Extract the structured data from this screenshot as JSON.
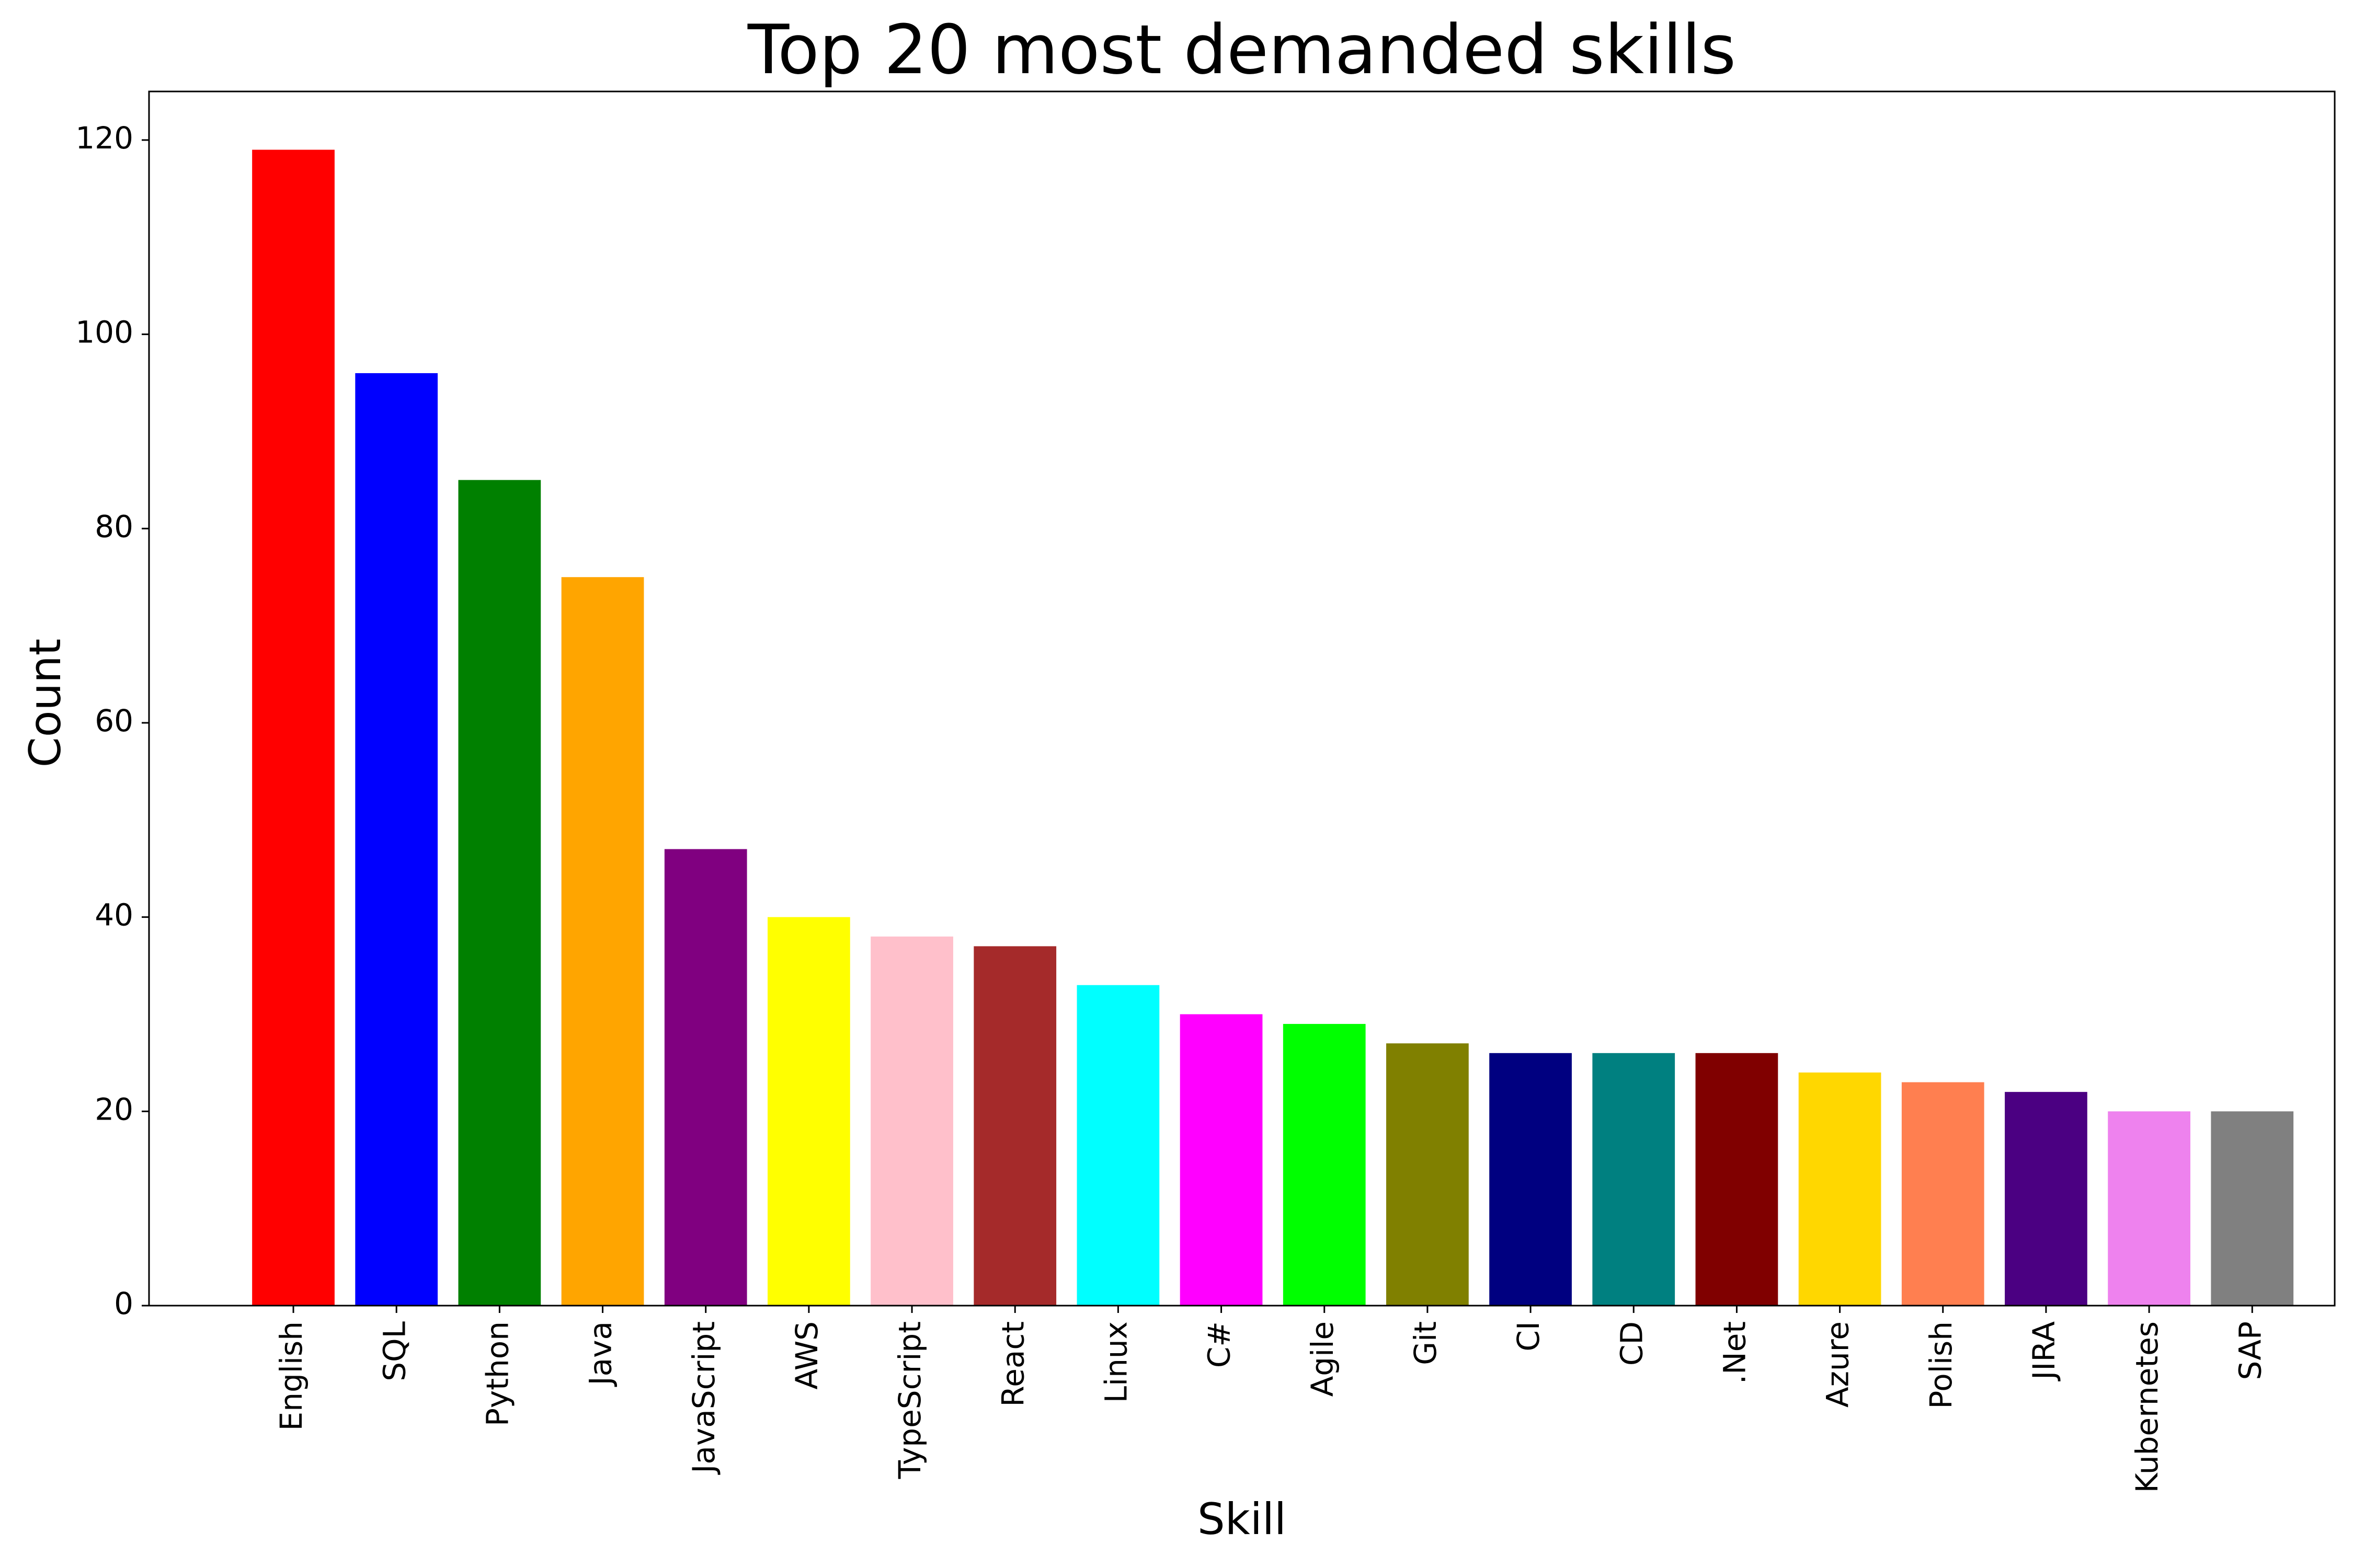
{
  "chart_data": {
    "type": "bar",
    "title": "Top 20 most demanded skills",
    "xlabel": "Skill",
    "ylabel": "Count",
    "ylim": [
      0,
      125
    ],
    "yticks": [
      0,
      20,
      40,
      60,
      80,
      100,
      120
    ],
    "grid": false,
    "legend": "none",
    "categories": [
      "English",
      "SQL",
      "Python",
      "Java",
      "JavaScript",
      "AWS",
      "TypeScript",
      "React",
      "Linux",
      "C#",
      "Agile",
      "Git",
      "CI",
      "CD",
      ".Net",
      "Azure",
      "Polish",
      "JIRA",
      "Kubernetes",
      "SAP"
    ],
    "values": [
      119,
      96,
      85,
      75,
      47,
      40,
      38,
      37,
      33,
      30,
      29,
      27,
      26,
      26,
      26,
      24,
      23,
      22,
      20,
      20
    ],
    "colors": [
      "#ff0000",
      "#0000ff",
      "#008000",
      "#ffa500",
      "#800080",
      "#ffff00",
      "#ffc0cb",
      "#a52a2a",
      "#00ffff",
      "#ff00ff",
      "#00ff00",
      "#808000",
      "#000080",
      "#008080",
      "#800000",
      "#ffd700",
      "#ff7f50",
      "#4b0082",
      "#ee82ee",
      "#808080"
    ]
  }
}
